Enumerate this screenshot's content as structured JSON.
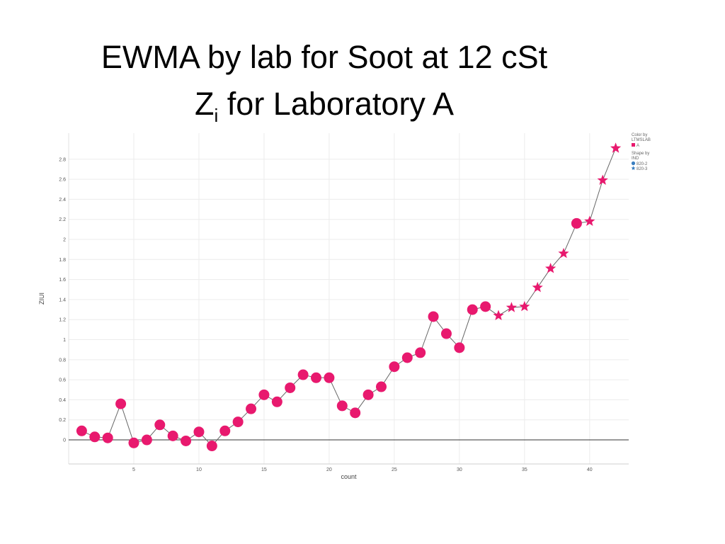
{
  "title": {
    "line1": "EWMA by lab for Soot at 12 cSt",
    "line2_main": "Z",
    "line2_sub": "i",
    "line2_rest": " for Laboratory A"
  },
  "chart_data": {
    "type": "scatter",
    "xlabel": "count",
    "ylabel": "ZIUI",
    "xlim": [
      0,
      43
    ],
    "ylim": [
      -0.24,
      3.06
    ],
    "x_ticks": [
      5,
      10,
      15,
      20,
      25,
      30,
      35,
      40
    ],
    "y_ticks": [
      0,
      0.2,
      0.4,
      0.6,
      0.8,
      1,
      1.2,
      1.4,
      1.6,
      1.8,
      2,
      2.2,
      2.4,
      2.6,
      2.8
    ],
    "y_tick_labels": [
      "0",
      "0.2",
      "0.4",
      "0.6",
      "0.8",
      "1",
      "1.2",
      "1.4",
      "1.6",
      "1.8",
      "2",
      "2.2",
      "2.4",
      "2.6",
      "2.8"
    ],
    "grid": true,
    "connect_points": true,
    "zero_line": true,
    "marker_color": "#e8196e",
    "line_color": "#666666",
    "legend": {
      "placement": "top-right",
      "color_title_lines": [
        "Color by",
        "LTMSLAB"
      ],
      "color_items": [
        {
          "label": "A",
          "color": "#e8196e"
        }
      ],
      "shape_title_lines": [
        "Shape by",
        "IND"
      ],
      "shape_items": [
        {
          "label": "820-2",
          "shape": "circle",
          "color": "#3a7ec0"
        },
        {
          "label": "820-3",
          "shape": "star",
          "color": "#3a7ec0"
        }
      ]
    },
    "series": [
      {
        "shape": "circle",
        "x": [
          1,
          2,
          3,
          4,
          5,
          6,
          7,
          8,
          9,
          10,
          11,
          12,
          13,
          14,
          15,
          16,
          17,
          18,
          19,
          20,
          21,
          22,
          23,
          24,
          25,
          26,
          27,
          28,
          29,
          30,
          31,
          32,
          39
        ],
        "y": [
          0.09,
          0.03,
          0.02,
          0.36,
          -0.03,
          0.0,
          0.15,
          0.04,
          -0.01,
          0.08,
          -0.06,
          0.09,
          0.18,
          0.31,
          0.45,
          0.38,
          0.52,
          0.65,
          0.62,
          0.62,
          0.34,
          0.27,
          0.45,
          0.53,
          0.73,
          0.82,
          0.87,
          1.23,
          1.06,
          0.92,
          1.3,
          1.33,
          2.16
        ]
      },
      {
        "shape": "star",
        "x": [
          33,
          34,
          35,
          36,
          37,
          38,
          40,
          41,
          42
        ],
        "y": [
          1.24,
          1.32,
          1.33,
          1.52,
          1.71,
          1.86,
          2.18,
          2.59,
          2.91
        ]
      }
    ]
  }
}
